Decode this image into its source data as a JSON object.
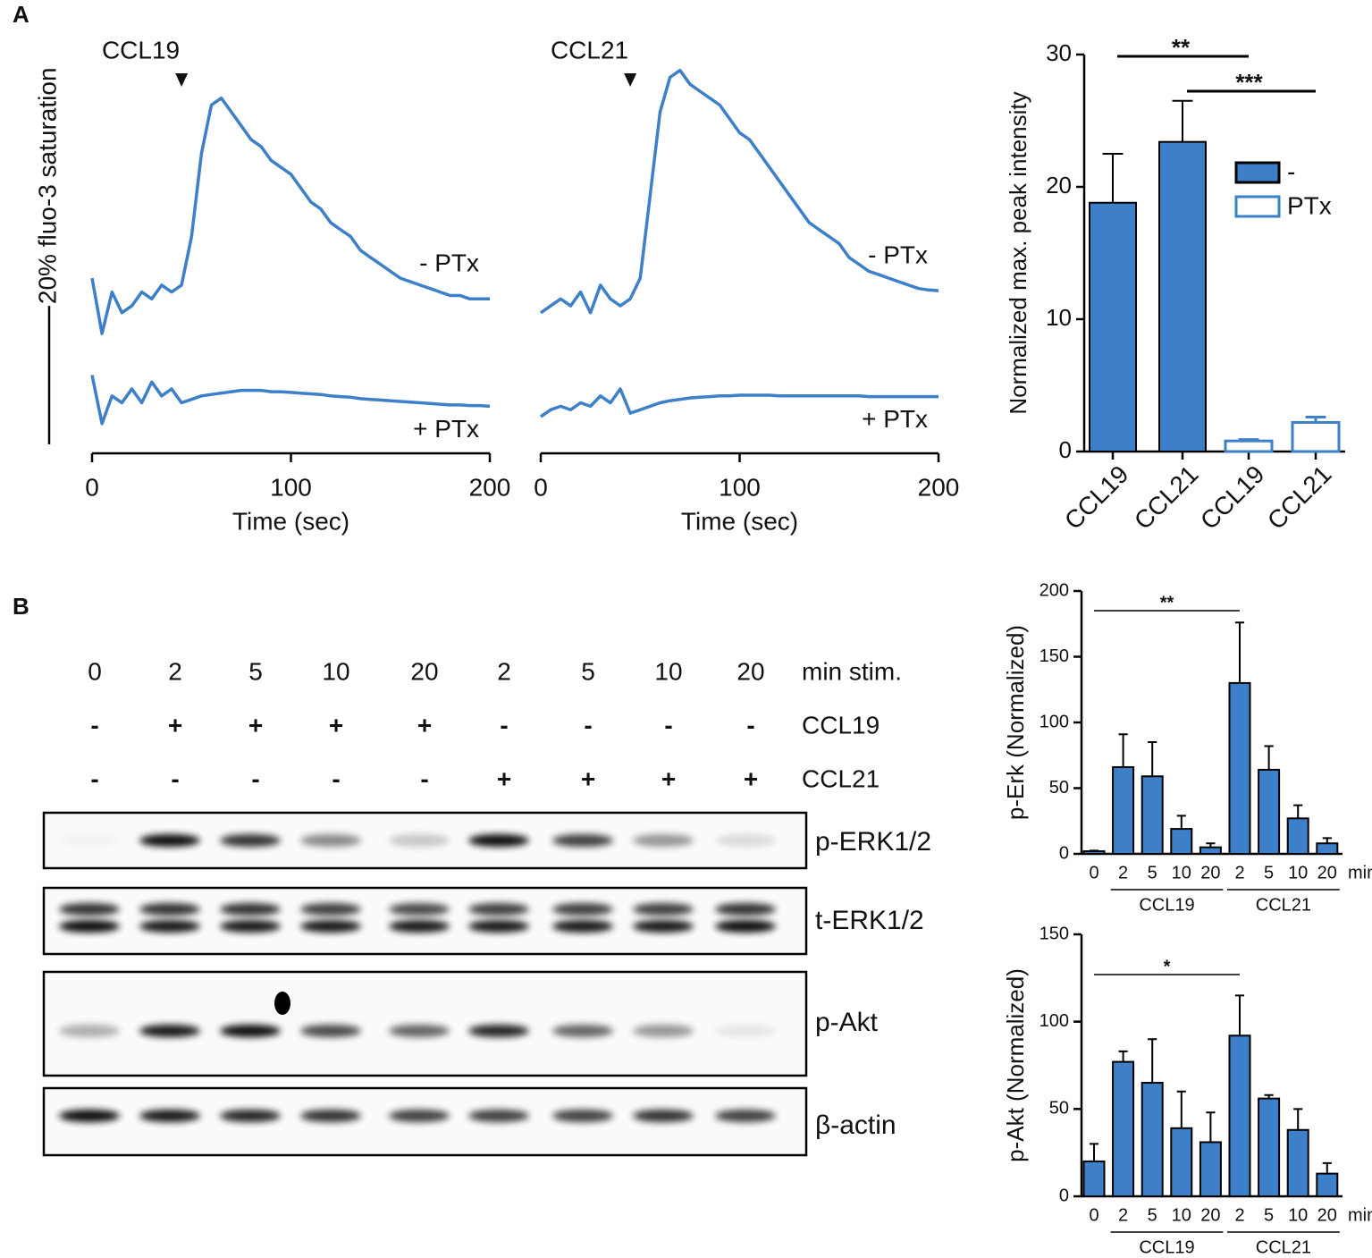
{
  "panel_labels": [
    "A",
    "B"
  ],
  "chart_data": [
    {
      "type": "line",
      "xlabel": "Time (sec)",
      "xlim": [
        0,
        200
      ],
      "xticks": [
        0,
        100,
        200
      ],
      "ylim": [
        0,
        55
      ],
      "x": [
        0,
        5,
        10,
        15,
        20,
        25,
        30,
        35,
        40,
        45,
        50,
        55,
        60,
        65,
        70,
        75,
        80,
        85,
        90,
        95,
        100,
        105,
        110,
        115,
        120,
        125,
        130,
        135,
        140,
        145,
        150,
        155,
        160,
        165,
        170,
        175,
        180,
        185,
        190,
        195,
        200
      ],
      "series": [
        {
          "name": "- PTx",
          "color": "#3d7fc8",
          "values": [
            24,
            16,
            22,
            19,
            20,
            22,
            21,
            23,
            22,
            23,
            30,
            42,
            49,
            50,
            48,
            46,
            44,
            43,
            41,
            40,
            39,
            37,
            35,
            34,
            32,
            31,
            30,
            28,
            27,
            26,
            25,
            24,
            23.5,
            23,
            22.5,
            22,
            21.5,
            21.5,
            21,
            21,
            21
          ]
        },
        {
          "name": "+ PTx",
          "color": "#3d7fc8",
          "values": [
            10,
            3,
            7,
            6,
            8,
            6,
            9,
            7,
            8,
            6,
            6.5,
            7,
            7.2,
            7.4,
            7.6,
            7.8,
            7.8,
            7.8,
            7.6,
            7.6,
            7.5,
            7.4,
            7.3,
            7.2,
            7,
            6.9,
            6.8,
            6.6,
            6.5,
            6.4,
            6.3,
            6.2,
            6.1,
            6,
            5.9,
            5.8,
            5.7,
            5.7,
            5.6,
            5.6,
            5.5
          ]
        }
      ],
      "annotations": [
        {
          "text": "CCL19",
          "x": 45
        }
      ],
      "scale_bar": {
        "label": "20% fluo-3 saturation",
        "value": 20
      }
    },
    {
      "type": "line",
      "xlabel": "Time (sec)",
      "xlim": [
        0,
        200
      ],
      "xticks": [
        0,
        100,
        200
      ],
      "ylim": [
        0,
        55
      ],
      "x": [
        0,
        5,
        10,
        15,
        20,
        25,
        30,
        35,
        40,
        45,
        50,
        55,
        60,
        65,
        70,
        75,
        80,
        85,
        90,
        95,
        100,
        105,
        110,
        115,
        120,
        125,
        130,
        135,
        140,
        145,
        150,
        155,
        160,
        165,
        170,
        175,
        180,
        185,
        190,
        195,
        200
      ],
      "series": [
        {
          "name": "- PTx",
          "color": "#3d7fc8",
          "values": [
            19,
            20,
            21,
            20,
            22,
            19,
            23,
            21,
            20,
            21,
            24,
            36,
            48,
            53,
            54,
            52,
            51,
            50,
            49,
            47,
            45,
            44,
            42,
            40,
            38,
            36,
            34,
            32,
            31,
            30,
            29,
            27,
            26,
            25,
            24.5,
            24,
            23.5,
            23,
            22.5,
            22.3,
            22.2
          ]
        },
        {
          "name": "+ PTx",
          "color": "#3d7fc8",
          "values": [
            4,
            5,
            5.5,
            5,
            6,
            5.5,
            7,
            6,
            8,
            4.5,
            5,
            5.5,
            6,
            6.3,
            6.5,
            6.7,
            6.8,
            6.9,
            7,
            7,
            7.1,
            7.1,
            7.1,
            7.1,
            7,
            7,
            7,
            7,
            7,
            7,
            7,
            7,
            7,
            6.9,
            6.9,
            6.9,
            6.9,
            6.9,
            6.9,
            6.9,
            6.9
          ]
        }
      ],
      "annotations": [
        {
          "text": "CCL21",
          "x": 45
        }
      ]
    },
    {
      "type": "bar",
      "ylabel": "Normalized max. peak intensity",
      "ylim": [
        0,
        30
      ],
      "yticks": [
        0,
        10,
        20,
        30
      ],
      "categories": [
        "CCL19",
        "CCL21",
        "CCL19",
        "CCL21"
      ],
      "series": [
        {
          "name": "-",
          "color": "#3d7fc8",
          "style": "filled",
          "values": [
            18.8,
            23.4,
            null,
            null
          ],
          "errors": [
            3.7,
            3.1,
            null,
            null
          ]
        },
        {
          "name": "PTx",
          "color": "#3d7fc8",
          "style": "open",
          "values": [
            null,
            null,
            0.8,
            2.2
          ],
          "errors": [
            null,
            null,
            0.1,
            0.4
          ]
        }
      ],
      "annotations": [
        {
          "text": "**",
          "from": 0,
          "to": 2
        },
        {
          "text": "***",
          "from": 1,
          "to": 3
        }
      ]
    },
    {
      "type": "bar",
      "ylabel": "p-Erk (Normalized)",
      "ylim": [
        0,
        200
      ],
      "yticks": [
        0,
        50,
        100,
        150,
        200
      ],
      "color": "#3d7fc8",
      "categories": [
        "0",
        "2",
        "5",
        "10",
        "20",
        "2",
        "5",
        "10",
        "20"
      ],
      "x_unit": "min",
      "values": [
        2,
        66,
        59,
        19,
        5,
        130,
        64,
        27,
        8
      ],
      "errors": [
        0.5,
        25,
        26,
        10,
        3,
        46,
        18,
        10,
        4
      ],
      "groups": [
        {
          "label": "CCL19",
          "from": 1,
          "to": 4
        },
        {
          "label": "CCL21",
          "from": 5,
          "to": 8
        }
      ],
      "annotations": [
        {
          "text": "**",
          "from": 0,
          "to": 5
        }
      ]
    },
    {
      "type": "bar",
      "ylabel": "p-Akt (Normalized)",
      "ylim": [
        0,
        150
      ],
      "yticks": [
        0,
        50,
        100,
        150
      ],
      "color": "#3d7fc8",
      "categories": [
        "0",
        "2",
        "5",
        "10",
        "20",
        "2",
        "5",
        "10",
        "20"
      ],
      "x_unit": "min",
      "values": [
        20,
        77,
        65,
        39,
        31,
        92,
        56,
        38,
        13
      ],
      "errors": [
        10,
        6,
        25,
        21,
        17,
        23,
        2,
        12,
        6
      ],
      "groups": [
        {
          "label": "CCL19",
          "from": 1,
          "to": 4
        },
        {
          "label": "CCL21",
          "from": 5,
          "to": 8
        }
      ],
      "annotations": [
        {
          "text": "*",
          "from": 0,
          "to": 5
        }
      ]
    }
  ],
  "blot": {
    "rows": [
      {
        "label": "min stim.",
        "cells": [
          "0",
          "2",
          "5",
          "10",
          "20",
          "2",
          "5",
          "10",
          "20"
        ]
      },
      {
        "label": "CCL19",
        "cells": [
          "-",
          "+",
          "+",
          "+",
          "+",
          "-",
          "-",
          "-",
          "-"
        ]
      },
      {
        "label": "CCL21",
        "cells": [
          "-",
          "-",
          "-",
          "-",
          "-",
          "+",
          "+",
          "+",
          "+"
        ]
      }
    ],
    "panels": [
      "p-ERK1/2",
      "t-ERK1/2",
      "p-Akt",
      "β-actin"
    ]
  }
}
